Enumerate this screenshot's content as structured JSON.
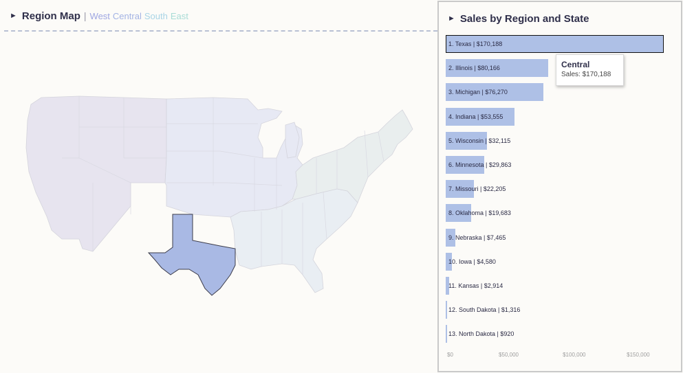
{
  "map_panel": {
    "title": "Region Map",
    "separator": "|",
    "regions": [
      {
        "label": "West",
        "color": "#9ea6e2"
      },
      {
        "label": "Central",
        "color": "#a3b3e4"
      },
      {
        "label": "South",
        "color": "#a8d4e6"
      },
      {
        "label": "East",
        "color": "#a8dcd6"
      }
    ],
    "highlight_color": "#a9b9e4",
    "west_color": "#e7e4ef",
    "central_color": "#e7e9f4",
    "south_color": "#e9eef3",
    "east_color": "#e9eeee"
  },
  "chart_panel": {
    "title": "Sales by Region and State",
    "tooltip": {
      "title": "Central",
      "label": "Sales:",
      "value": "$170,188"
    }
  },
  "chart_data": {
    "type": "bar",
    "orientation": "horizontal",
    "title": "Sales by Region and State",
    "categories": [
      "1. Texas | $170,188",
      "2. Illinois | $80,166",
      "3. Michigan | $76,270",
      "4. Indiana | $53,555",
      "5. Wisconsin | $32,115",
      "6. Minnesota | $29,863",
      "7. Missouri | $22,205",
      "8. Oklahoma | $19,683",
      "9. Nebraska | $7,465",
      "10. Iowa | $4,580",
      "11. Kansas | $2,914",
      "12. South Dakota | $1,316",
      "13. North Dakota | $920"
    ],
    "values": [
      170188,
      80166,
      76270,
      53555,
      32115,
      29863,
      22205,
      19683,
      7465,
      4580,
      2914,
      1316,
      920
    ],
    "xlim": [
      0,
      180000
    ],
    "xticks": [
      {
        "value": 0,
        "label": "$0"
      },
      {
        "value": 50000,
        "label": "$50,000"
      },
      {
        "value": 100000,
        "label": "$100,000"
      },
      {
        "value": 150000,
        "label": "$150,000"
      }
    ],
    "selected_index": 0,
    "bar_color": "#aec0e6"
  }
}
